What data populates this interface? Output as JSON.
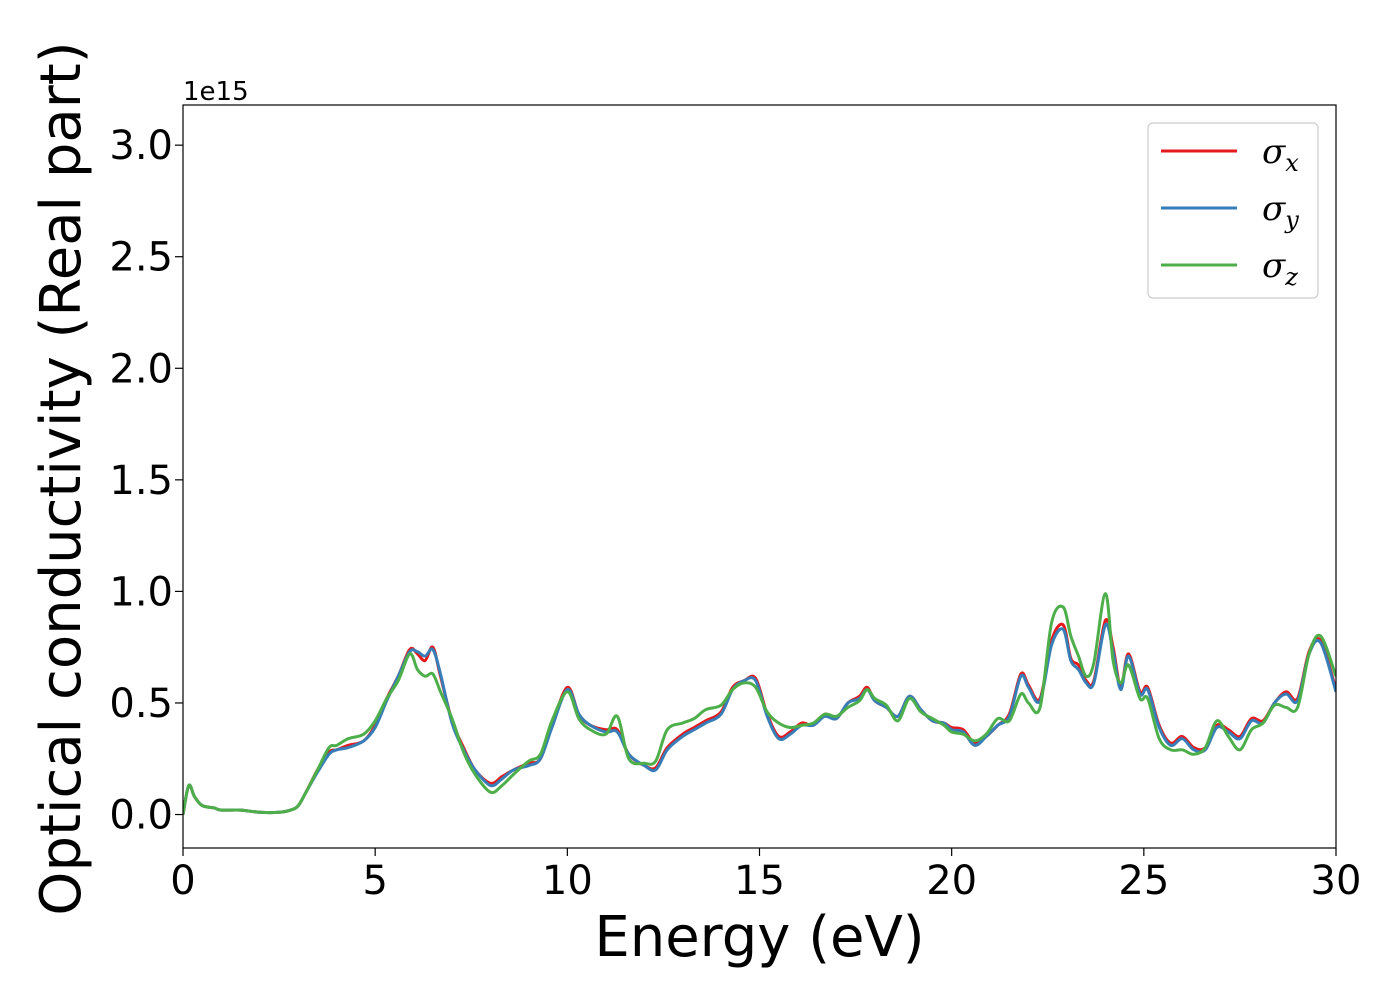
{
  "chart_data": {
    "type": "line",
    "title": "",
    "xlabel": "Energy (eV)",
    "ylabel": "Optical conductivity (Real part)",
    "y_offset_label": "1e15",
    "y_scale_factor": 1000000000000000.0,
    "xlim": [
      0,
      30
    ],
    "ylim": [
      -0.15,
      3.18
    ],
    "xticks": [
      0,
      5,
      10,
      15,
      20,
      25,
      30
    ],
    "xtick_labels": [
      "0",
      "5",
      "10",
      "15",
      "20",
      "25",
      "30"
    ],
    "yticks": [
      0.0,
      0.5,
      1.0,
      1.5,
      2.0,
      2.5,
      3.0
    ],
    "ytick_labels": [
      "0.0",
      "0.5",
      "1.0",
      "1.5",
      "2.0",
      "2.5",
      "3.0"
    ],
    "grid": false,
    "legend_position": "top-right",
    "series": [
      {
        "name": "σx",
        "legend_base": "σ",
        "legend_sub": "x",
        "color": "#e41a1c",
        "x": [
          0,
          0.15,
          0.3,
          0.5,
          0.8,
          1.0,
          1.5,
          2.0,
          2.5,
          2.8,
          3.0,
          3.2,
          3.5,
          3.8,
          4.0,
          4.3,
          4.7,
          5.0,
          5.3,
          5.6,
          5.9,
          6.1,
          6.3,
          6.5,
          6.7,
          7.0,
          7.3,
          7.6,
          8.0,
          8.3,
          8.6,
          9.0,
          9.3,
          9.6,
          10.0,
          10.3,
          10.6,
          11.0,
          11.3,
          11.6,
          12.0,
          12.3,
          12.6,
          13.0,
          13.3,
          13.6,
          14.0,
          14.3,
          14.6,
          14.9,
          15.2,
          15.5,
          15.8,
          16.1,
          16.4,
          16.7,
          17.0,
          17.3,
          17.6,
          17.8,
          18.0,
          18.3,
          18.6,
          18.9,
          19.2,
          19.5,
          19.8,
          20.0,
          20.3,
          20.6,
          20.9,
          21.2,
          21.5,
          21.8,
          22.0,
          22.3,
          22.6,
          22.9,
          23.1,
          23.3,
          23.5,
          23.7,
          24.0,
          24.2,
          24.4,
          24.6,
          24.9,
          25.1,
          25.4,
          25.7,
          26.0,
          26.3,
          26.6,
          26.9,
          27.2,
          27.5,
          27.8,
          28.1,
          28.4,
          28.7,
          29.0,
          29.3,
          29.6,
          30.0
        ],
        "y": [
          0.0,
          0.13,
          0.08,
          0.04,
          0.03,
          0.02,
          0.02,
          0.01,
          0.01,
          0.02,
          0.04,
          0.1,
          0.2,
          0.28,
          0.29,
          0.31,
          0.33,
          0.4,
          0.52,
          0.62,
          0.74,
          0.72,
          0.69,
          0.75,
          0.62,
          0.42,
          0.3,
          0.2,
          0.14,
          0.17,
          0.2,
          0.23,
          0.25,
          0.4,
          0.57,
          0.45,
          0.4,
          0.38,
          0.38,
          0.27,
          0.22,
          0.21,
          0.3,
          0.36,
          0.39,
          0.42,
          0.46,
          0.57,
          0.6,
          0.61,
          0.45,
          0.35,
          0.37,
          0.41,
          0.4,
          0.45,
          0.43,
          0.5,
          0.53,
          0.57,
          0.51,
          0.48,
          0.44,
          0.53,
          0.47,
          0.42,
          0.41,
          0.39,
          0.38,
          0.32,
          0.35,
          0.4,
          0.45,
          0.63,
          0.58,
          0.52,
          0.78,
          0.85,
          0.7,
          0.67,
          0.6,
          0.6,
          0.87,
          0.75,
          0.57,
          0.72,
          0.55,
          0.57,
          0.4,
          0.32,
          0.35,
          0.3,
          0.3,
          0.4,
          0.38,
          0.35,
          0.43,
          0.42,
          0.5,
          0.55,
          0.52,
          0.73,
          0.78,
          0.56
        ]
      },
      {
        "name": "σy",
        "legend_base": "σ",
        "legend_sub": "y",
        "color": "#377eb8",
        "x": [
          0,
          0.15,
          0.3,
          0.5,
          0.8,
          1.0,
          1.5,
          2.0,
          2.5,
          2.8,
          3.0,
          3.2,
          3.5,
          3.8,
          4.0,
          4.3,
          4.7,
          5.0,
          5.3,
          5.6,
          5.9,
          6.1,
          6.3,
          6.5,
          6.7,
          7.0,
          7.3,
          7.6,
          8.0,
          8.3,
          8.6,
          9.0,
          9.3,
          9.6,
          10.0,
          10.3,
          10.6,
          11.0,
          11.3,
          11.6,
          12.0,
          12.3,
          12.6,
          13.0,
          13.3,
          13.6,
          14.0,
          14.3,
          14.6,
          14.9,
          15.2,
          15.5,
          15.8,
          16.1,
          16.4,
          16.7,
          17.0,
          17.3,
          17.6,
          17.8,
          18.0,
          18.3,
          18.6,
          18.9,
          19.2,
          19.5,
          19.8,
          20.0,
          20.3,
          20.6,
          20.9,
          21.2,
          21.5,
          21.8,
          22.0,
          22.3,
          22.6,
          22.9,
          23.1,
          23.3,
          23.5,
          23.7,
          24.0,
          24.2,
          24.4,
          24.6,
          24.9,
          25.1,
          25.4,
          25.7,
          26.0,
          26.3,
          26.6,
          26.9,
          27.2,
          27.5,
          27.8,
          28.1,
          28.4,
          28.7,
          29.0,
          29.3,
          29.6,
          30.0
        ],
        "y": [
          0.0,
          0.13,
          0.08,
          0.04,
          0.03,
          0.02,
          0.02,
          0.01,
          0.01,
          0.02,
          0.04,
          0.1,
          0.19,
          0.27,
          0.29,
          0.3,
          0.33,
          0.39,
          0.51,
          0.62,
          0.73,
          0.73,
          0.71,
          0.74,
          0.63,
          0.41,
          0.29,
          0.2,
          0.13,
          0.16,
          0.2,
          0.22,
          0.25,
          0.39,
          0.56,
          0.45,
          0.4,
          0.37,
          0.37,
          0.27,
          0.22,
          0.2,
          0.29,
          0.35,
          0.38,
          0.41,
          0.45,
          0.56,
          0.6,
          0.6,
          0.44,
          0.34,
          0.36,
          0.4,
          0.4,
          0.44,
          0.43,
          0.5,
          0.52,
          0.56,
          0.51,
          0.48,
          0.44,
          0.53,
          0.47,
          0.42,
          0.41,
          0.38,
          0.37,
          0.31,
          0.35,
          0.4,
          0.44,
          0.62,
          0.57,
          0.51,
          0.76,
          0.83,
          0.69,
          0.65,
          0.59,
          0.59,
          0.85,
          0.73,
          0.56,
          0.71,
          0.54,
          0.56,
          0.39,
          0.31,
          0.34,
          0.29,
          0.29,
          0.39,
          0.37,
          0.34,
          0.42,
          0.41,
          0.5,
          0.54,
          0.51,
          0.72,
          0.77,
          0.55
        ]
      },
      {
        "name": "σz",
        "legend_base": "σ",
        "legend_sub": "z",
        "color": "#4daf4a",
        "x": [
          0,
          0.15,
          0.3,
          0.5,
          0.8,
          1.0,
          1.5,
          2.0,
          2.5,
          2.8,
          3.0,
          3.2,
          3.5,
          3.8,
          4.0,
          4.3,
          4.7,
          5.0,
          5.3,
          5.6,
          5.9,
          6.1,
          6.3,
          6.5,
          6.7,
          7.0,
          7.3,
          7.6,
          8.0,
          8.3,
          8.6,
          9.0,
          9.3,
          9.6,
          10.0,
          10.3,
          10.6,
          11.0,
          11.3,
          11.6,
          12.0,
          12.3,
          12.6,
          13.0,
          13.3,
          13.6,
          14.0,
          14.3,
          14.6,
          14.9,
          15.2,
          15.5,
          15.8,
          16.1,
          16.4,
          16.7,
          17.0,
          17.3,
          17.6,
          17.8,
          18.0,
          18.3,
          18.6,
          18.9,
          19.2,
          19.5,
          19.8,
          20.0,
          20.3,
          20.6,
          20.9,
          21.2,
          21.5,
          21.8,
          22.0,
          22.3,
          22.6,
          22.9,
          23.1,
          23.3,
          23.5,
          23.7,
          24.0,
          24.2,
          24.4,
          24.6,
          24.9,
          25.1,
          25.4,
          25.7,
          26.0,
          26.3,
          26.6,
          26.9,
          27.2,
          27.5,
          27.8,
          28.1,
          28.4,
          28.7,
          29.0,
          29.3,
          29.6,
          30.0
        ],
        "y": [
          0.0,
          0.13,
          0.08,
          0.04,
          0.03,
          0.02,
          0.02,
          0.01,
          0.01,
          0.02,
          0.04,
          0.1,
          0.2,
          0.3,
          0.31,
          0.34,
          0.36,
          0.42,
          0.52,
          0.6,
          0.72,
          0.65,
          0.62,
          0.63,
          0.55,
          0.43,
          0.28,
          0.18,
          0.1,
          0.13,
          0.18,
          0.24,
          0.27,
          0.42,
          0.55,
          0.43,
          0.38,
          0.36,
          0.44,
          0.25,
          0.23,
          0.24,
          0.38,
          0.41,
          0.43,
          0.47,
          0.49,
          0.56,
          0.59,
          0.57,
          0.46,
          0.41,
          0.39,
          0.4,
          0.41,
          0.45,
          0.44,
          0.48,
          0.51,
          0.56,
          0.52,
          0.49,
          0.42,
          0.52,
          0.46,
          0.43,
          0.4,
          0.37,
          0.36,
          0.33,
          0.36,
          0.43,
          0.42,
          0.54,
          0.5,
          0.48,
          0.86,
          0.93,
          0.8,
          0.71,
          0.62,
          0.68,
          0.99,
          0.69,
          0.59,
          0.67,
          0.52,
          0.52,
          0.34,
          0.29,
          0.29,
          0.27,
          0.3,
          0.42,
          0.35,
          0.29,
          0.38,
          0.41,
          0.49,
          0.48,
          0.48,
          0.72,
          0.8,
          0.62
        ]
      }
    ]
  }
}
